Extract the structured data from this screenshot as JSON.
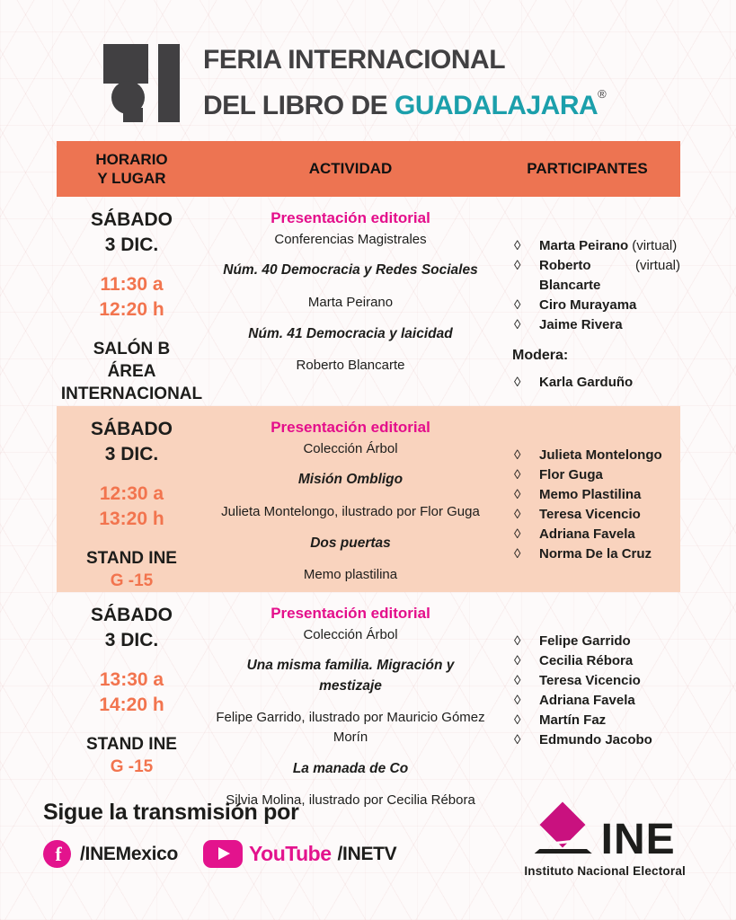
{
  "header": {
    "title_line1": "FERIA INTERNACIONAL",
    "title_line2": "DEL LIBRO DE",
    "title_city": "GUADALAJARA",
    "reg": "®"
  },
  "colors": {
    "header_bar_orange": "#ED7452",
    "highlight_peach": "#F9D3BE",
    "time_orange": "#F2744E",
    "category_magenta": "#E40E8B",
    "social_magenta": "#E3138D",
    "ine_magenta": "#C9117F",
    "fil_teal": "#1B9FAB",
    "fil_gray": "#414042",
    "text_black": "#1D1D1B"
  },
  "bullet": "◊",
  "table": {
    "col1_line1": "HORARIO",
    "col1_line2": "Y LUGAR",
    "col2": "ACTIVIDAD",
    "col3": "PARTICIPANTES"
  },
  "sessions": [
    {
      "highlighted": false,
      "schedule_lines": [
        {
          "t": "SÁBADO",
          "c": "day"
        },
        {
          "t": "3 DIC.",
          "c": "day"
        },
        {
          "t": "11:30 a",
          "c": "time gap"
        },
        {
          "t": "12:20 h",
          "c": "time"
        },
        {
          "t": "SALÓN B",
          "c": "venue gap"
        },
        {
          "t": "ÁREA",
          "c": "venue"
        },
        {
          "t": "INTERNACIONAL",
          "c": "venue"
        }
      ],
      "activity_lines": [
        {
          "t": "Presentación editorial",
          "c": "category"
        },
        {
          "t": "Conferencias Magistrales",
          "c": "plain"
        },
        {
          "t": "Núm. 40 Democracia y Redes Sociales",
          "c": "title gap"
        },
        {
          "t": "Marta Peirano",
          "c": "plain gap"
        },
        {
          "t": "Núm. 41 Democracia y laicidad",
          "c": "title gap"
        },
        {
          "t": "Roberto Blancarte",
          "c": "plain gap"
        }
      ],
      "participants": [
        {
          "name": "Marta Peirano",
          "note": "(virtual)"
        },
        {
          "name": "Roberto Blancarte",
          "note": "(virtual)"
        },
        {
          "name": "Ciro Murayama"
        },
        {
          "name": "Jaime Rivera"
        }
      ],
      "moderator_label": "Modera:",
      "moderators": [
        {
          "name": "Karla Garduño"
        }
      ]
    },
    {
      "highlighted": true,
      "schedule_lines": [
        {
          "t": "SÁBADO",
          "c": "day"
        },
        {
          "t": "3 DIC.",
          "c": "day"
        },
        {
          "t": "12:30 a",
          "c": "time gap"
        },
        {
          "t": "13:20 h",
          "c": "time"
        },
        {
          "t": "STAND INE",
          "c": "venue gap"
        },
        {
          "t": "G -15",
          "c": "venue-accent"
        }
      ],
      "activity_lines": [
        {
          "t": "Presentación editorial",
          "c": "category"
        },
        {
          "t": "Colección Árbol",
          "c": "plain"
        },
        {
          "t": "Misión Ombligo",
          "c": "title gap"
        },
        {
          "t": "Julieta Montelongo, ilustrado por Flor Guga",
          "c": "plain gap"
        },
        {
          "t": "Dos puertas",
          "c": "title gap"
        },
        {
          "t": "Memo plastilina",
          "c": "plain gap"
        }
      ],
      "participants": [
        {
          "name": "Julieta Montelongo"
        },
        {
          "name": "Flor Guga"
        },
        {
          "name": "Memo Plastilina"
        },
        {
          "name": "Teresa Vicencio"
        },
        {
          "name": "Adriana Favela"
        },
        {
          "name": "Norma De la Cruz"
        }
      ]
    },
    {
      "highlighted": false,
      "schedule_lines": [
        {
          "t": "SÁBADO",
          "c": "day"
        },
        {
          "t": "3 DIC.",
          "c": "day"
        },
        {
          "t": "13:30 a",
          "c": "time gap"
        },
        {
          "t": "14:20 h",
          "c": "time"
        },
        {
          "t": "STAND INE",
          "c": "venue gap"
        },
        {
          "t": "G -15",
          "c": "venue-accent"
        }
      ],
      "activity_lines": [
        {
          "t": "Presentación editorial",
          "c": "category"
        },
        {
          "t": "Colección Árbol",
          "c": "plain"
        },
        {
          "t": "Una misma familia. Migración y mestizaje",
          "c": "title gap"
        },
        {
          "t": "Felipe Garrido, ilustrado por Mauricio Gómez Morín",
          "c": "plain gap"
        },
        {
          "t": "La manada de Co",
          "c": "title gap"
        },
        {
          "t": "Silvia Molina, ilustrado por Cecilia Rébora",
          "c": "plain gap"
        }
      ],
      "participants": [
        {
          "name": "Felipe Garrido"
        },
        {
          "name": "Cecilia Rébora"
        },
        {
          "name": "Teresa Vicencio"
        },
        {
          "name": "Adriana Favela"
        },
        {
          "name": "Martín Faz"
        },
        {
          "name": "Edmundo Jacobo"
        }
      ]
    }
  ],
  "footer": {
    "follow": "Sigue la transmisión por",
    "facebook_letter": "f",
    "facebook_handle": "/INEMexico",
    "youtube_wordmark": "YouTube",
    "youtube_handle": "/INETV",
    "ine_name": "INE",
    "ine_subtitle": "Instituto Nacional Electoral"
  }
}
